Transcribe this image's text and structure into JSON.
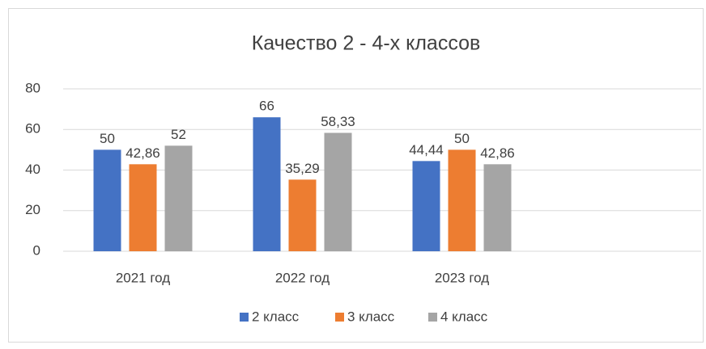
{
  "chart_data": {
    "type": "bar",
    "title": "Качество 2 - 4-х классов",
    "categories": [
      "2021 год",
      "2022 год",
      "2023 год",
      null
    ],
    "series": [
      {
        "name": "2 класс",
        "color": "#4472c4",
        "values": [
          50,
          66,
          44.44,
          null
        ],
        "value_labels": [
          "50",
          "66",
          "44,44",
          null
        ]
      },
      {
        "name": "3 класс",
        "color": "#ed7d31",
        "values": [
          42.86,
          35.29,
          50,
          null
        ],
        "value_labels": [
          "42,86",
          "35,29",
          "50",
          null
        ]
      },
      {
        "name": "4 класс",
        "color": "#a5a5a5",
        "values": [
          52,
          58.33,
          42.86,
          null
        ],
        "value_labels": [
          "52",
          "58,33",
          "42,86",
          null
        ]
      }
    ],
    "ylim": [
      0,
      80
    ],
    "yticks": [
      0,
      20,
      40,
      60,
      80
    ],
    "grid": true,
    "legend": "bottom"
  }
}
